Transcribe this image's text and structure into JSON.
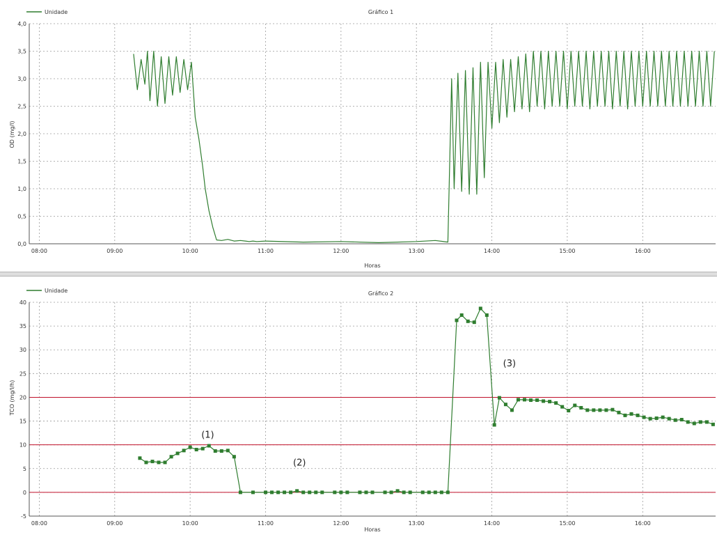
{
  "chart_data": [
    {
      "type": "line",
      "title": "Gráfico 1",
      "legend": "Unidade",
      "legend_position": "top-left",
      "xlabel": "Horas",
      "ylabel": "OD (mg/l)",
      "x_ticks": [
        "08:00",
        "09:00",
        "10:00",
        "11:00",
        "12:00",
        "13:00",
        "14:00",
        "15:00",
        "16:00"
      ],
      "y_ticks": [
        "0,0",
        "0,5",
        "1,0",
        "1,5",
        "2,0",
        "2,5",
        "3,0",
        "3,5",
        "4,0"
      ],
      "xlim": [
        "07:52",
        "16:58"
      ],
      "ylim": [
        0,
        4
      ],
      "grid": true,
      "line_color": "#2f7d2f",
      "series": [
        {
          "x": [
            "09:15",
            "09:18",
            "09:21",
            "09:24",
            "09:26",
            "09:28",
            "09:31",
            "09:34",
            "09:37",
            "09:40",
            "09:43",
            "09:46",
            "09:49",
            "09:52",
            "09:55",
            "09:58",
            "10:01",
            "10:04",
            "10:07",
            "10:10",
            "10:12",
            "10:15",
            "10:18",
            "10:21",
            "10:25",
            "10:30",
            "10:35",
            "10:40",
            "10:44",
            "10:47",
            "10:50",
            "10:53",
            "11:00",
            "11:30",
            "12:00",
            "12:30",
            "13:00",
            "13:15",
            "13:25",
            "13:28",
            "13:30",
            "13:33",
            "13:36",
            "13:39",
            "13:42",
            "13:45",
            "13:48",
            "13:51",
            "13:54",
            "13:57",
            "14:00",
            "14:03",
            "14:06",
            "14:09",
            "14:12",
            "14:15",
            "14:18",
            "14:21",
            "14:24",
            "14:27",
            "14:30",
            "14:33",
            "14:36",
            "14:39",
            "14:42",
            "14:45",
            "14:48",
            "14:51",
            "14:54",
            "14:57",
            "15:00",
            "15:03",
            "15:06",
            "15:09",
            "15:12",
            "15:15",
            "15:18",
            "15:21",
            "15:24",
            "15:27",
            "15:30",
            "15:33",
            "15:36",
            "15:39",
            "15:42",
            "15:45",
            "15:48",
            "15:51",
            "15:54",
            "15:57",
            "16:00",
            "16:03",
            "16:06",
            "16:09",
            "16:12",
            "16:15",
            "16:18",
            "16:21",
            "16:24",
            "16:27",
            "16:30",
            "16:33",
            "16:36",
            "16:39",
            "16:42",
            "16:45",
            "16:48",
            "16:51",
            "16:54",
            "16:57"
          ],
          "y": [
            3.45,
            2.8,
            3.35,
            2.9,
            3.5,
            2.6,
            3.5,
            2.5,
            3.4,
            2.55,
            3.4,
            2.7,
            3.4,
            2.75,
            3.35,
            2.8,
            3.3,
            2.3,
            1.9,
            1.4,
            1.0,
            0.6,
            0.3,
            0.07,
            0.06,
            0.08,
            0.05,
            0.06,
            0.05,
            0.04,
            0.05,
            0.04,
            0.05,
            0.03,
            0.04,
            0.02,
            0.04,
            0.06,
            0.03,
            3.0,
            1.0,
            3.1,
            0.95,
            3.15,
            0.9,
            3.2,
            0.9,
            3.3,
            1.2,
            3.3,
            2.1,
            3.3,
            2.2,
            3.35,
            2.3,
            3.35,
            2.4,
            3.4,
            2.45,
            3.45,
            2.4,
            3.5,
            2.5,
            3.5,
            2.45,
            3.5,
            2.5,
            3.5,
            2.5,
            3.5,
            2.45,
            3.5,
            2.5,
            3.5,
            2.5,
            3.5,
            2.45,
            3.5,
            2.5,
            3.5,
            2.5,
            3.5,
            2.45,
            3.5,
            2.5,
            3.5,
            2.45,
            3.5,
            2.5,
            3.5,
            2.5,
            3.5,
            2.5,
            3.5,
            2.5,
            3.5,
            2.5,
            3.5,
            2.5,
            3.5,
            2.5,
            3.5,
            2.5,
            3.5,
            2.5,
            3.5,
            2.5,
            3.5,
            2.5,
            3.5
          ]
        }
      ]
    },
    {
      "type": "line",
      "title": "Gráfico 2",
      "legend": "Unidade",
      "legend_position": "top-left",
      "xlabel": "Horas",
      "ylabel": "TCO (mg/l/h)",
      "x_ticks": [
        "08:00",
        "09:00",
        "10:00",
        "11:00",
        "12:00",
        "13:00",
        "14:00",
        "15:00",
        "16:00"
      ],
      "y_ticks": [
        "-5",
        "0",
        "5",
        "10",
        "15",
        "20",
        "25",
        "30",
        "35",
        "40"
      ],
      "xlim": [
        "07:52",
        "16:58"
      ],
      "ylim": [
        -5,
        40
      ],
      "grid": true,
      "line_color": "#2f7d2f",
      "reference_lines": [
        0,
        10,
        20
      ],
      "reference_line_color": "#c0102a",
      "annotations": [
        {
          "text": "(1)",
          "x": "10:14",
          "y": 11.5
        },
        {
          "text": "(2)",
          "x": "11:27",
          "y": 5.6
        },
        {
          "text": "(3)",
          "x": "14:14",
          "y": 26.5
        }
      ],
      "series": [
        {
          "x": [
            "09:20",
            "09:25",
            "09:30",
            "09:35",
            "09:40",
            "09:45",
            "09:50",
            "09:55",
            "10:00",
            "10:05",
            "10:10",
            "10:15",
            "10:20",
            "10:25",
            "10:30",
            "10:35",
            "10:40",
            "10:50",
            "11:00",
            "11:05",
            "11:10",
            "11:15",
            "11:20",
            "11:25",
            "11:30",
            "11:35",
            "11:40",
            "11:45",
            "11:55",
            "12:00",
            "12:05",
            "12:15",
            "12:20",
            "12:25",
            "12:35",
            "12:40",
            "12:45",
            "12:50",
            "12:55",
            "13:05",
            "13:10",
            "13:15",
            "13:20",
            "13:25",
            "13:32",
            "13:36",
            "13:41",
            "13:46",
            "13:51",
            "13:56",
            "14:02",
            "14:06",
            "14:11",
            "14:16",
            "14:21",
            "14:26",
            "14:31",
            "14:36",
            "14:41",
            "14:46",
            "14:51",
            "14:56",
            "15:01",
            "15:06",
            "15:11",
            "15:16",
            "15:21",
            "15:26",
            "15:31",
            "15:36",
            "15:41",
            "15:46",
            "15:51",
            "15:56",
            "16:01",
            "16:06",
            "16:11",
            "16:16",
            "16:21",
            "16:26",
            "16:31",
            "16:36",
            "16:41",
            "16:46",
            "16:51",
            "16:56"
          ],
          "y": [
            7.2,
            6.3,
            6.5,
            6.3,
            6.3,
            7.5,
            8.2,
            8.8,
            9.5,
            9.0,
            9.2,
            9.8,
            8.7,
            8.7,
            8.8,
            7.5,
            0,
            0,
            0,
            0,
            0,
            0,
            0,
            0.3,
            0,
            0,
            0,
            0,
            0,
            0,
            0,
            0,
            0,
            0,
            0,
            0,
            0.3,
            0,
            0,
            0,
            0,
            0,
            0,
            0,
            36.2,
            37.3,
            36.0,
            35.8,
            38.7,
            37.3,
            14.2,
            19.9,
            18.5,
            17.3,
            19.5,
            19.5,
            19.4,
            19.4,
            19.2,
            19.1,
            18.8,
            18.0,
            17.2,
            18.3,
            17.8,
            17.3,
            17.3,
            17.3,
            17.3,
            17.4,
            16.8,
            16.2,
            16.5,
            16.2,
            15.8,
            15.5,
            15.6,
            15.8,
            15.5,
            15.2,
            15.3,
            14.8,
            14.5,
            14.8,
            14.8,
            14.3
          ]
        }
      ]
    }
  ]
}
